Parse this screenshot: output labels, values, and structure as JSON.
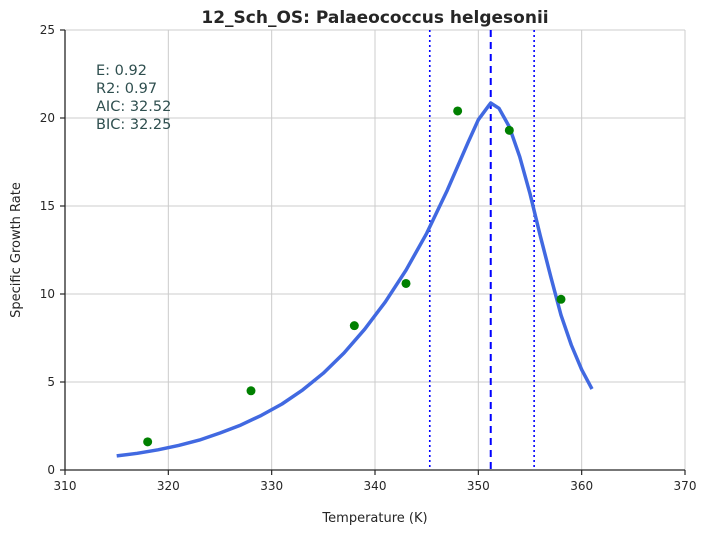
{
  "chart_data": {
    "type": "scatter",
    "title": "12_Sch_OS: Palaeococcus helgesonii",
    "xlabel": "Temperature (K)",
    "ylabel": "Specific Growth Rate",
    "xlim": [
      310,
      370
    ],
    "ylim": [
      0,
      25
    ],
    "xticks": [
      310,
      320,
      330,
      340,
      350,
      360,
      370
    ],
    "yticks": [
      0,
      5,
      10,
      15,
      20,
      25
    ],
    "xtick_labels": [
      "310",
      "320",
      "330",
      "340",
      "350",
      "360",
      "370"
    ],
    "ytick_labels": [
      "0",
      "5",
      "10",
      "15",
      "20",
      "25"
    ],
    "grid": true,
    "colors": {
      "points": "#008000",
      "fit": "#4169e1",
      "vlines": "#0000ff",
      "text": "#2f4f4f"
    },
    "points": {
      "x": [
        318,
        328,
        338,
        343,
        348,
        353,
        358
      ],
      "y": [
        1.6,
        4.5,
        8.2,
        10.6,
        20.4,
        19.3,
        9.7
      ]
    },
    "fit_curve": {
      "x": [
        315,
        317,
        319,
        321,
        323,
        325,
        327,
        329,
        331,
        333,
        335,
        337,
        339,
        341,
        343,
        345,
        347,
        349,
        350,
        351,
        351.2,
        352,
        353,
        354,
        355,
        356,
        357,
        358,
        359,
        360,
        361
      ],
      "y": [
        0.8,
        0.95,
        1.15,
        1.4,
        1.7,
        2.1,
        2.55,
        3.1,
        3.75,
        4.55,
        5.5,
        6.65,
        8.0,
        9.55,
        11.35,
        13.45,
        15.9,
        18.6,
        19.9,
        20.7,
        20.85,
        20.55,
        19.5,
        17.8,
        15.7,
        13.3,
        11.0,
        8.8,
        7.1,
        5.7,
        4.6
      ]
    },
    "vlines": [
      {
        "x": 345.3,
        "style": "dotted"
      },
      {
        "x": 351.2,
        "style": "dashed"
      },
      {
        "x": 355.4,
        "style": "dotted"
      }
    ],
    "annotation": [
      "E:  0.92",
      "R2:  0.97",
      "AIC: 32.52",
      "BIC: 32.25"
    ]
  }
}
